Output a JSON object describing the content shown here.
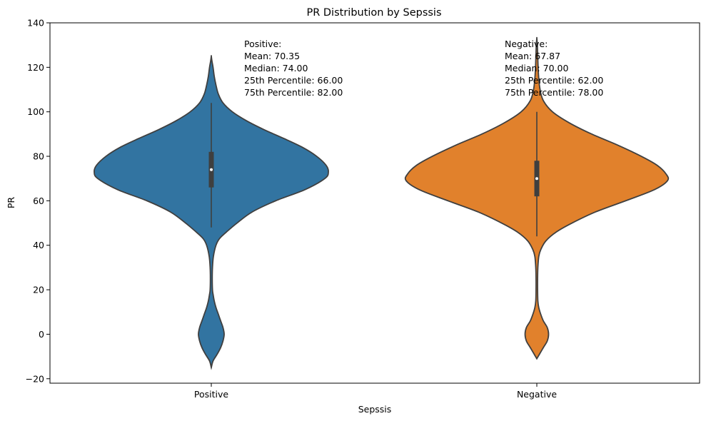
{
  "chart_data": {
    "type": "violin",
    "title": "PR Distribution by Sepssis",
    "xlabel": "Sepssis",
    "ylabel": "PR",
    "ylim": [
      -22,
      140
    ],
    "yticks": [
      -20,
      0,
      20,
      40,
      60,
      80,
      100,
      120,
      140
    ],
    "categories": [
      "Positive",
      "Negative"
    ],
    "series": [
      {
        "name": "Positive",
        "color": "#3274a1",
        "mean": 70.35,
        "median": 74.0,
        "q1": 66.0,
        "q3": 82.0,
        "whisker_low": 48,
        "whisker_high": 104,
        "density_profile": [
          [
            -15,
            0.0
          ],
          [
            -12,
            0.015
          ],
          [
            -9,
            0.05
          ],
          [
            -6,
            0.08
          ],
          [
            -3,
            0.1
          ],
          [
            0,
            0.11
          ],
          [
            3,
            0.1
          ],
          [
            6,
            0.08
          ],
          [
            9,
            0.06
          ],
          [
            12,
            0.04
          ],
          [
            15,
            0.025
          ],
          [
            18,
            0.015
          ],
          [
            20,
            0.01
          ],
          [
            25,
            0.008
          ],
          [
            30,
            0.01
          ],
          [
            35,
            0.018
          ],
          [
            40,
            0.04
          ],
          [
            43,
            0.07
          ],
          [
            46,
            0.13
          ],
          [
            50,
            0.22
          ],
          [
            55,
            0.35
          ],
          [
            60,
            0.55
          ],
          [
            65,
            0.8
          ],
          [
            70,
            0.97
          ],
          [
            73,
            1.0
          ],
          [
            76,
            0.98
          ],
          [
            80,
            0.9
          ],
          [
            84,
            0.78
          ],
          [
            88,
            0.62
          ],
          [
            92,
            0.45
          ],
          [
            96,
            0.3
          ],
          [
            100,
            0.18
          ],
          [
            104,
            0.1
          ],
          [
            108,
            0.06
          ],
          [
            112,
            0.04
          ],
          [
            116,
            0.025
          ],
          [
            120,
            0.015
          ],
          [
            123,
            0.005
          ],
          [
            125,
            0.0
          ]
        ],
        "annotation": [
          "Positive:",
          "Mean: 70.35",
          "Median: 74.00",
          "25th Percentile: 66.00",
          "75th Percentile: 82.00"
        ]
      },
      {
        "name": "Negative",
        "color": "#e1812c",
        "mean": 67.87,
        "median": 70.0,
        "q1": 62.0,
        "q3": 78.0,
        "whisker_low": 44,
        "whisker_high": 100,
        "density_profile": [
          [
            -11,
            0.0
          ],
          [
            -9,
            0.02
          ],
          [
            -6,
            0.05
          ],
          [
            -3,
            0.08
          ],
          [
            0,
            0.09
          ],
          [
            3,
            0.08
          ],
          [
            6,
            0.05
          ],
          [
            9,
            0.03
          ],
          [
            12,
            0.015
          ],
          [
            15,
            0.008
          ],
          [
            20,
            0.006
          ],
          [
            25,
            0.006
          ],
          [
            30,
            0.008
          ],
          [
            35,
            0.015
          ],
          [
            38,
            0.03
          ],
          [
            42,
            0.07
          ],
          [
            46,
            0.15
          ],
          [
            50,
            0.27
          ],
          [
            55,
            0.45
          ],
          [
            60,
            0.68
          ],
          [
            65,
            0.9
          ],
          [
            69,
            1.0
          ],
          [
            72,
            0.99
          ],
          [
            76,
            0.92
          ],
          [
            80,
            0.8
          ],
          [
            85,
            0.62
          ],
          [
            90,
            0.42
          ],
          [
            95,
            0.25
          ],
          [
            100,
            0.12
          ],
          [
            105,
            0.05
          ],
          [
            110,
            0.025
          ],
          [
            115,
            0.015
          ],
          [
            120,
            0.01
          ],
          [
            125,
            0.007
          ],
          [
            130,
            0.004
          ],
          [
            133,
            0.0
          ]
        ],
        "annotation": [
          "Negative:",
          "Mean: 67.87",
          "Median: 70.00",
          "25th Percentile: 62.00",
          "75th Percentile: 78.00"
        ]
      }
    ],
    "grid": false,
    "legend": "none"
  }
}
